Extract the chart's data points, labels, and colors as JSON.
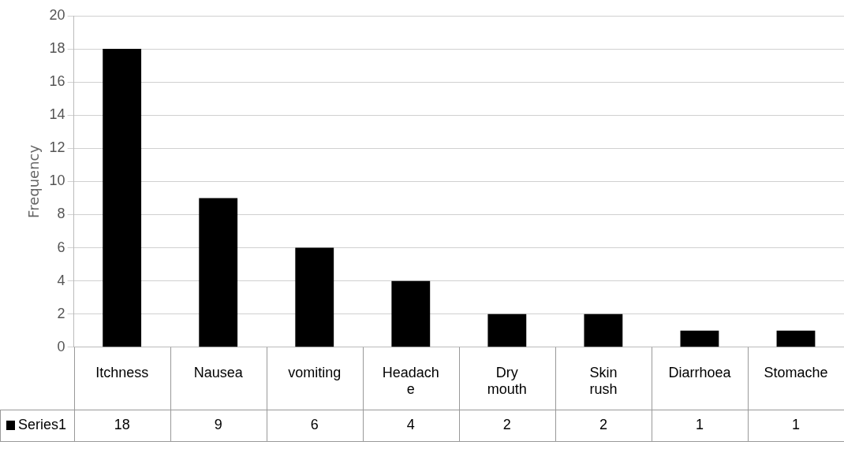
{
  "chart_data": {
    "type": "bar",
    "ylabel": "Frequency",
    "categories": [
      "Itchness",
      "Nausea",
      "vomiting",
      "Headache",
      "Dry mouth",
      "Skin rush",
      "Diarrhoea",
      "Stomache"
    ],
    "series": [
      {
        "name": "Series1",
        "color": "#000000",
        "values": [
          18,
          9,
          6,
          4,
          2,
          2,
          1,
          1
        ]
      }
    ],
    "ylim": [
      0,
      20
    ],
    "yticks": [
      0,
      2,
      4,
      6,
      8,
      10,
      12,
      14,
      16,
      18,
      20
    ],
    "grid": "y",
    "legend": "bottom left",
    "data_labels": true
  }
}
